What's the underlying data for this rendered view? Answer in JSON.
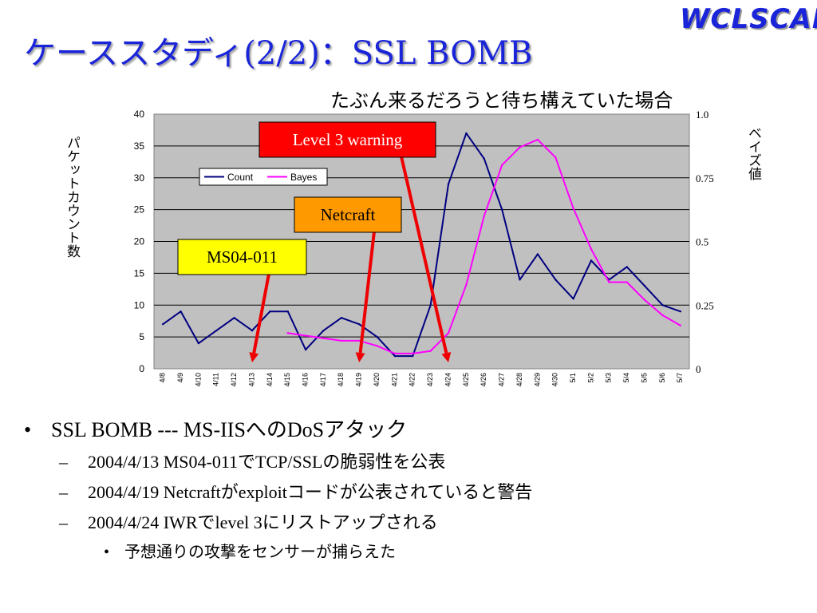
{
  "slide": {
    "title": "ケーススタディ(2/2)：SSL BOMB",
    "logo": "WCLSCAN",
    "subtitle": "たぶん来るだろうと待ち構えていた場合"
  },
  "chart_data": {
    "type": "line",
    "categories": [
      "4/8",
      "4/9",
      "4/10",
      "4/11",
      "4/12",
      "4/13",
      "4/14",
      "4/15",
      "4/16",
      "4/17",
      "4/18",
      "4/19",
      "4/20",
      "4/21",
      "4/22",
      "4/23",
      "4/24",
      "4/25",
      "4/26",
      "4/27",
      "4/28",
      "4/29",
      "4/30",
      "5/1",
      "5/2",
      "5/3",
      "5/4",
      "5/5",
      "5/6",
      "5/7"
    ],
    "series": [
      {
        "name": "Count",
        "axis": "left",
        "color": "#000080",
        "values": [
          7,
          9,
          4,
          6,
          8,
          6,
          9,
          9,
          3,
          6,
          8,
          7,
          5,
          2,
          2,
          10,
          29,
          37,
          33,
          25,
          14,
          18,
          14,
          11,
          17,
          14,
          16,
          13,
          10,
          9
        ]
      },
      {
        "name": "Bayes",
        "axis": "right",
        "color": "#ff00ff",
        "values": [
          null,
          null,
          null,
          null,
          null,
          null,
          null,
          0.14,
          0.13,
          0.12,
          0.11,
          0.11,
          0.09,
          0.06,
          0.06,
          0.07,
          0.14,
          0.33,
          0.6,
          0.8,
          0.87,
          0.9,
          0.83,
          0.63,
          0.47,
          0.34,
          0.34,
          0.27,
          0.21,
          0.17
        ]
      }
    ],
    "ylabel": "パケットカウント数",
    "y2label": "ベイズ値",
    "ylim": [
      0,
      40
    ],
    "y2lim": [
      0,
      1.0
    ],
    "yticks": [
      "0",
      "5",
      "10",
      "15",
      "20",
      "25",
      "30",
      "35",
      "40"
    ],
    "y2ticks": [
      "0",
      "0.25",
      "0.5",
      "0.75",
      "1.0"
    ],
    "grid": true,
    "legend": "top-left",
    "annotations": [
      {
        "text": "Level 3 warning",
        "style": "red",
        "target": "4/24"
      },
      {
        "text": "Netcraft",
        "style": "orange",
        "target": "4/19"
      },
      {
        "text": "MS04-011",
        "style": "yellow",
        "target": "4/13"
      }
    ]
  },
  "bullets": {
    "main": "SSL BOMB --- MS-IISへのDoSアタック",
    "dot": "•",
    "dash": "–",
    "subs": [
      "2004/4/13 MS04-011でTCP/SSLの脆弱性を公表",
      "2004/4/19 Netcraftがexploitコードが公表されていると警告",
      "2004/4/24 IWRでlevel 3にリストアップされる"
    ],
    "subsub": "予想通りの攻撃をセンサーが捕らえた"
  }
}
